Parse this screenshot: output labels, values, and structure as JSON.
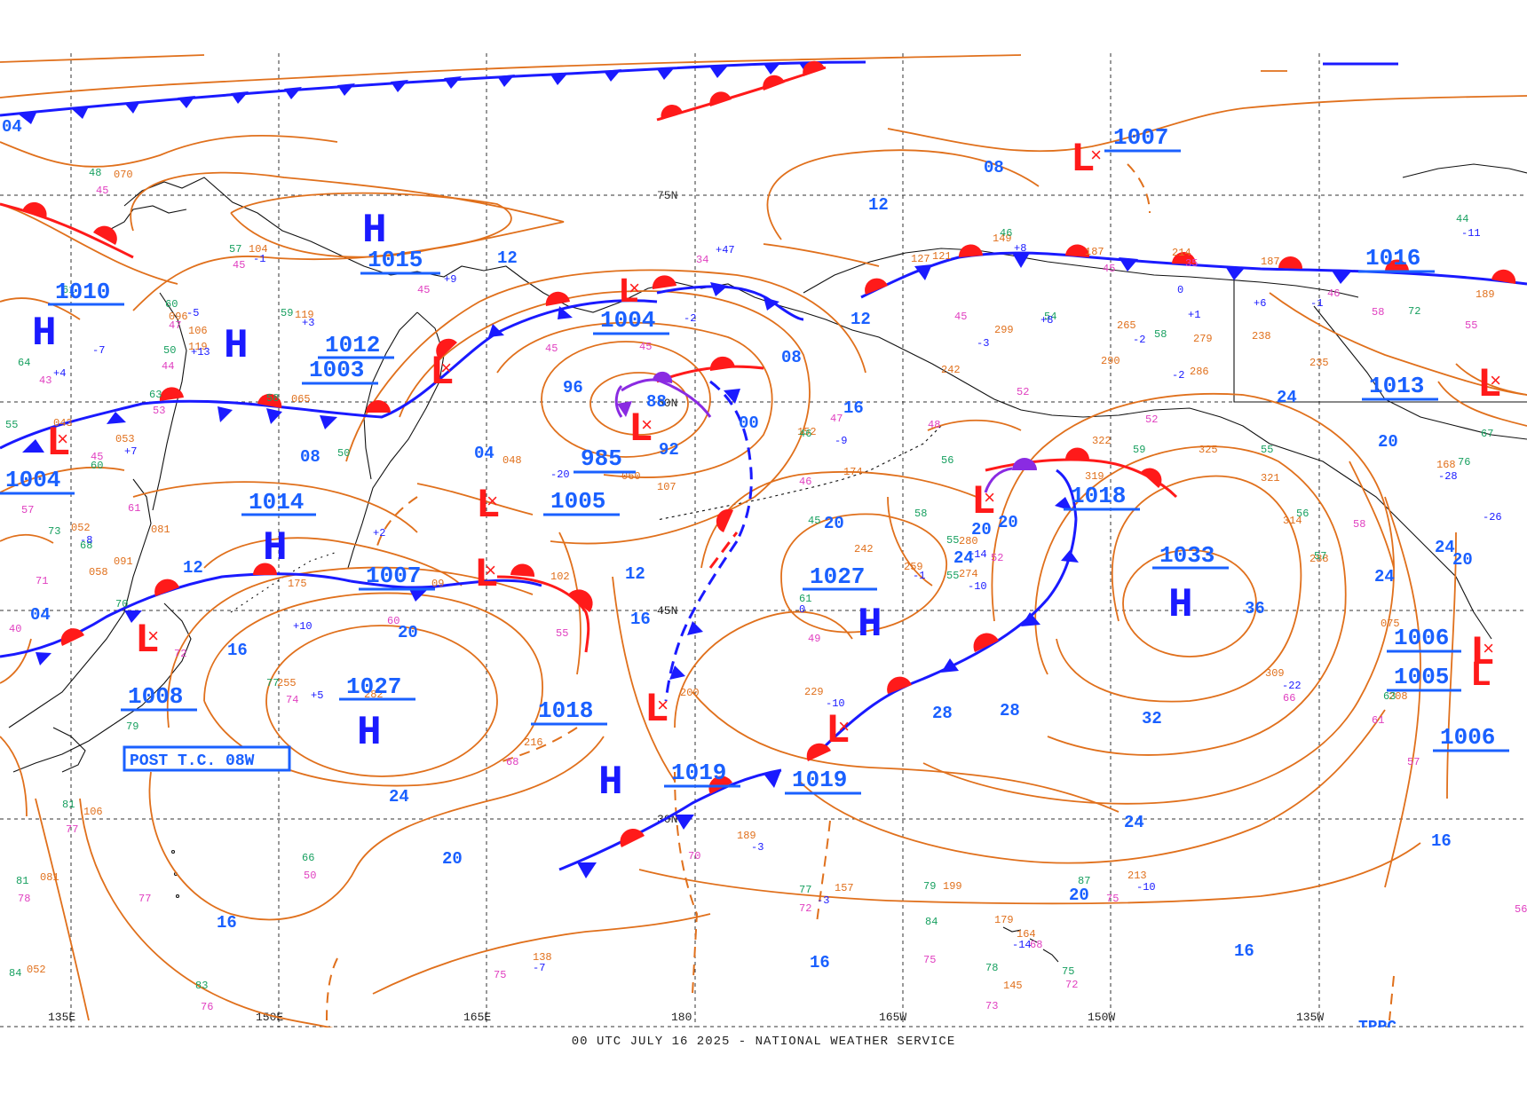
{
  "chart": {
    "footer": "00 UTC JULY 16 2025 - NATIONAL WEATHER SERVICE",
    "lat_labels": [
      "75N",
      "60N",
      "45N",
      "30N"
    ],
    "lon_labels": [
      "135E",
      "150E",
      "165E",
      "180",
      "165W",
      "150W",
      "135W"
    ],
    "tc_label": "POST T.C. 08W",
    "corner_label": "TPPC",
    "colors": {
      "isobar": "#e0701c",
      "front_cold": "#1a1aff",
      "front_warm": "#ff1a1a",
      "occluded": "#8a2be2",
      "high": "#1a1aff",
      "low": "#ff1a1a",
      "value_label": "#1a60ff",
      "obs_orange": "#e0701c",
      "obs_magenta": "#e040c0",
      "obs_green": "#18a060",
      "grid": "#333333"
    }
  },
  "highs": [
    {
      "id": "h1",
      "value": "1015"
    },
    {
      "id": "h2",
      "value": "1010"
    },
    {
      "id": "h3",
      "value": "1012"
    },
    {
      "id": "h4",
      "value": "1014"
    },
    {
      "id": "h5",
      "value": "1027"
    },
    {
      "id": "h6",
      "value": "1027"
    },
    {
      "id": "h7",
      "value": "1033"
    },
    {
      "id": "h8",
      "value": "1018"
    }
  ],
  "lows": [
    {
      "id": "l1",
      "value": "1007"
    },
    {
      "id": "l2",
      "value": "1004"
    },
    {
      "id": "l3",
      "value": "1003"
    },
    {
      "id": "l4",
      "value": "1004"
    },
    {
      "id": "l5",
      "value": "985"
    },
    {
      "id": "l6",
      "value": "1005"
    },
    {
      "id": "l7",
      "value": "1007"
    },
    {
      "id": "l8",
      "value": "1008"
    },
    {
      "id": "l9",
      "value": "1018"
    },
    {
      "id": "l10",
      "value": "1019"
    },
    {
      "id": "l11",
      "value": "1019"
    },
    {
      "id": "l12",
      "value": "1018"
    },
    {
      "id": "l13",
      "value": "1016"
    },
    {
      "id": "l14",
      "value": "1013"
    },
    {
      "id": "l15",
      "value": "1006"
    },
    {
      "id": "l16",
      "value": "1005"
    },
    {
      "id": "l17",
      "value": "1006"
    }
  ],
  "isobar_labels": [
    "04",
    "08",
    "12",
    "12",
    "08",
    "04",
    "00",
    "96",
    "88",
    "92",
    "12",
    "16",
    "20",
    "24",
    "20",
    "16",
    "08",
    "12",
    "16",
    "20",
    "24",
    "28",
    "32",
    "36",
    "24",
    "20",
    "16",
    "16",
    "16",
    "20",
    "24",
    "28",
    "24",
    "20",
    "04",
    "12",
    "16",
    "20",
    "24",
    "20",
    "16"
  ]
}
